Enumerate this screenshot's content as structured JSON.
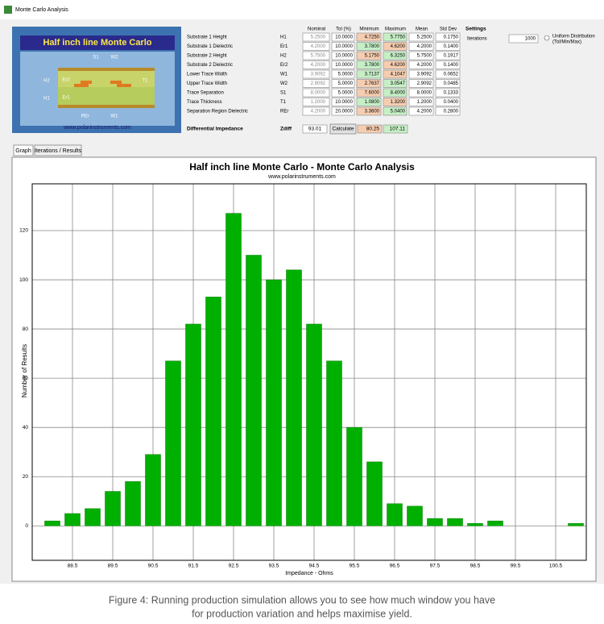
{
  "window": {
    "title": "Monte Carlo Analysis"
  },
  "diagram": {
    "title": "Half inch line Monte Carlo",
    "labels": [
      "S1",
      "W2",
      "H2",
      "Er2",
      "T1",
      "H1",
      "Er1",
      "REr",
      "W1"
    ],
    "url": "www.polarinstruments.com"
  },
  "table": {
    "headers": [
      "Nominal",
      "Tol (%)",
      "Minimum",
      "Maximum",
      "Mean",
      "Std Dev"
    ],
    "rows": [
      [
        "Substrate 1 Height",
        "H1",
        "5.2500",
        "10.0000",
        "4.7250",
        "5.7750",
        "5.2500",
        "0.1750"
      ],
      [
        "Substrate 1 Dielectric",
        "Er1",
        "4.2000",
        "10.0000",
        "3.7800",
        "4.6200",
        "4.2000",
        "0.1400"
      ],
      [
        "Substrate 2 Height",
        "H2",
        "5.7500",
        "10.0000",
        "5.1750",
        "6.3250",
        "5.7500",
        "0.1917"
      ],
      [
        "Substrate 2 Dielectric",
        "Er2",
        "4.2000",
        "10.0000",
        "3.7800",
        "4.6200",
        "4.2000",
        "0.1400"
      ],
      [
        "Lower Trace Width",
        "W1",
        "3.9092",
        "5.0000",
        "3.7137",
        "4.1047",
        "3.9092",
        "0.0652"
      ],
      [
        "Upper Trace Width",
        "W2",
        "2.9092",
        "5.0000",
        "2.7637",
        "3.0547",
        "2.9092",
        "0.0485"
      ],
      [
        "Trace Separation",
        "S1",
        "8.0000",
        "5.0000",
        "7.6000",
        "8.4000",
        "8.0000",
        "0.1333"
      ],
      [
        "Trace Thickness",
        "T1",
        "1.2000",
        "10.0000",
        "1.0800",
        "1.3200",
        "1.2000",
        "0.0400"
      ],
      [
        "Separation Region Dielectric",
        "REr",
        "4.2000",
        "20.0000",
        "3.3600",
        "5.0400",
        "4.2000",
        "0.2800"
      ]
    ]
  },
  "impedance": {
    "label": "Differential Impedance",
    "symbol": "Zdiff",
    "value": "93.01",
    "button": "Calculate",
    "minimum": "80.25",
    "maximum": "107.11"
  },
  "settings": {
    "title": "Settings",
    "iterations_label": "Iterations",
    "iterations": "1000",
    "distribution": [
      "Uniform Distribution",
      "(Tol/Min/Max)"
    ]
  },
  "tabs": [
    "Graph",
    "Iterations / Results"
  ],
  "chart_data": {
    "type": "bar",
    "title": "Half inch line Monte Carlo - Monte Carlo Analysis",
    "subtitle": "www.polarinstruments.com",
    "x_label": "Impedance - Ohms",
    "y_label": "Number of Results",
    "x": [
      88.0,
      88.5,
      89.0,
      89.5,
      90.0,
      90.5,
      91.0,
      91.5,
      92.0,
      92.5,
      93.0,
      93.5,
      94.0,
      94.5,
      95.0,
      95.5,
      96.0,
      96.5,
      97.0,
      97.5,
      98.0,
      98.5,
      99.0,
      101.0
    ],
    "values": [
      2,
      5,
      7,
      14,
      18,
      29,
      67,
      82,
      93,
      127,
      110,
      100,
      104,
      82,
      67,
      40,
      26,
      9,
      8,
      3,
      3,
      1,
      2,
      1
    ],
    "color": "#00b000",
    "xlim": [
      87.5,
      101.26
    ],
    "ylim": [
      -14,
      139
    ],
    "xticks": [
      88.5,
      89.5,
      90.5,
      91.5,
      92.5,
      93.5,
      94.5,
      95.5,
      96.5,
      97.5,
      98.5,
      99.5,
      100.5
    ],
    "yticks": [
      0,
      20,
      40,
      60,
      80,
      100,
      120
    ],
    "grid": true
  },
  "caption": [
    "Figure 4: Running production simulation allows you to see how much window you have",
    "for production variation and helps maximise yield."
  ]
}
